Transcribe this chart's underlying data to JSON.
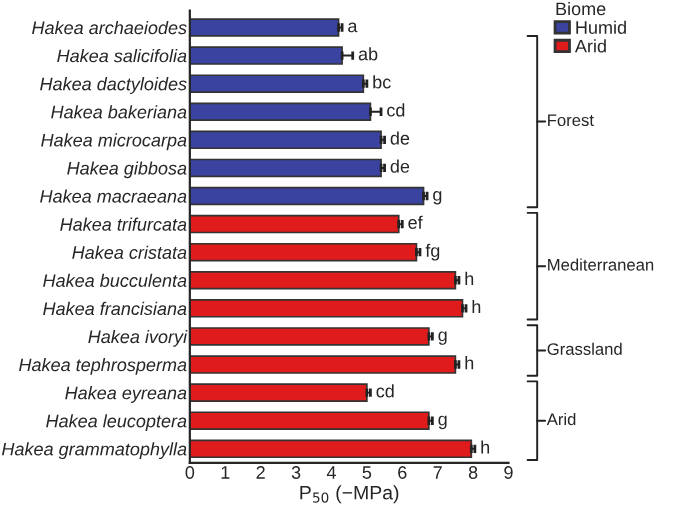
{
  "chart_data": {
    "type": "bar",
    "orientation": "horizontal",
    "xlabel": "P$_{50}$ (−MPa)",
    "legend_title": "Biome",
    "legend": "top right",
    "categories": [
      "Hakea archaeiodes",
      "Hakea salicifolia",
      "Hakea dactyloides",
      "Hakea bakeriana",
      "Hakea microcarpa",
      "Hakea gibbosa",
      "Hakea macraeana",
      "Hakea trifurcata",
      "Hakea cristata",
      "Hakea bucculenta",
      "Hakea francisiana",
      "Hakea ivoryi",
      "Hakea tephrosperma",
      "Hakea eyreana",
      "Hakea leucoptera",
      "Hakea grammatophylla"
    ],
    "series": [
      {
        "name": "Humid",
        "color": "#3a44a0",
        "values": [
          4.2,
          4.3,
          4.9,
          5.1,
          5.4,
          5.4,
          6.6,
          null,
          null,
          null,
          null,
          null,
          null,
          null,
          null,
          null
        ],
        "errors": [
          0.1,
          0.3,
          0.1,
          0.3,
          0.1,
          0.1,
          0.1,
          null,
          null,
          null,
          null,
          null,
          null,
          null,
          null,
          null
        ],
        "value_labels": [
          "a",
          "ab",
          "bc",
          "cd",
          "de",
          "de",
          "g",
          null,
          null,
          null,
          null,
          null,
          null,
          null,
          null,
          null
        ]
      },
      {
        "name": "Arid",
        "color": "#e01b1b",
        "values": [
          null,
          null,
          null,
          null,
          null,
          null,
          null,
          5.9,
          6.4,
          7.5,
          7.7,
          6.75,
          7.5,
          5.0,
          6.75,
          7.95
        ],
        "errors": [
          null,
          null,
          null,
          null,
          null,
          null,
          null,
          0.1,
          0.1,
          0.1,
          0.1,
          0.1,
          0.1,
          0.1,
          0.1,
          0.1
        ],
        "value_labels": [
          null,
          null,
          null,
          null,
          null,
          null,
          null,
          "ef",
          "fg",
          "h",
          "h",
          "g",
          "h",
          "cd",
          "g",
          "h"
        ]
      }
    ],
    "xlim": [
      0,
      9
    ],
    "xticks": [
      0,
      1,
      2,
      3,
      4,
      5,
      6,
      7,
      8,
      9
    ],
    "grid": false,
    "annotations": [
      "Forest",
      "Mediterranean",
      "Grassland",
      "Arid"
    ]
  }
}
